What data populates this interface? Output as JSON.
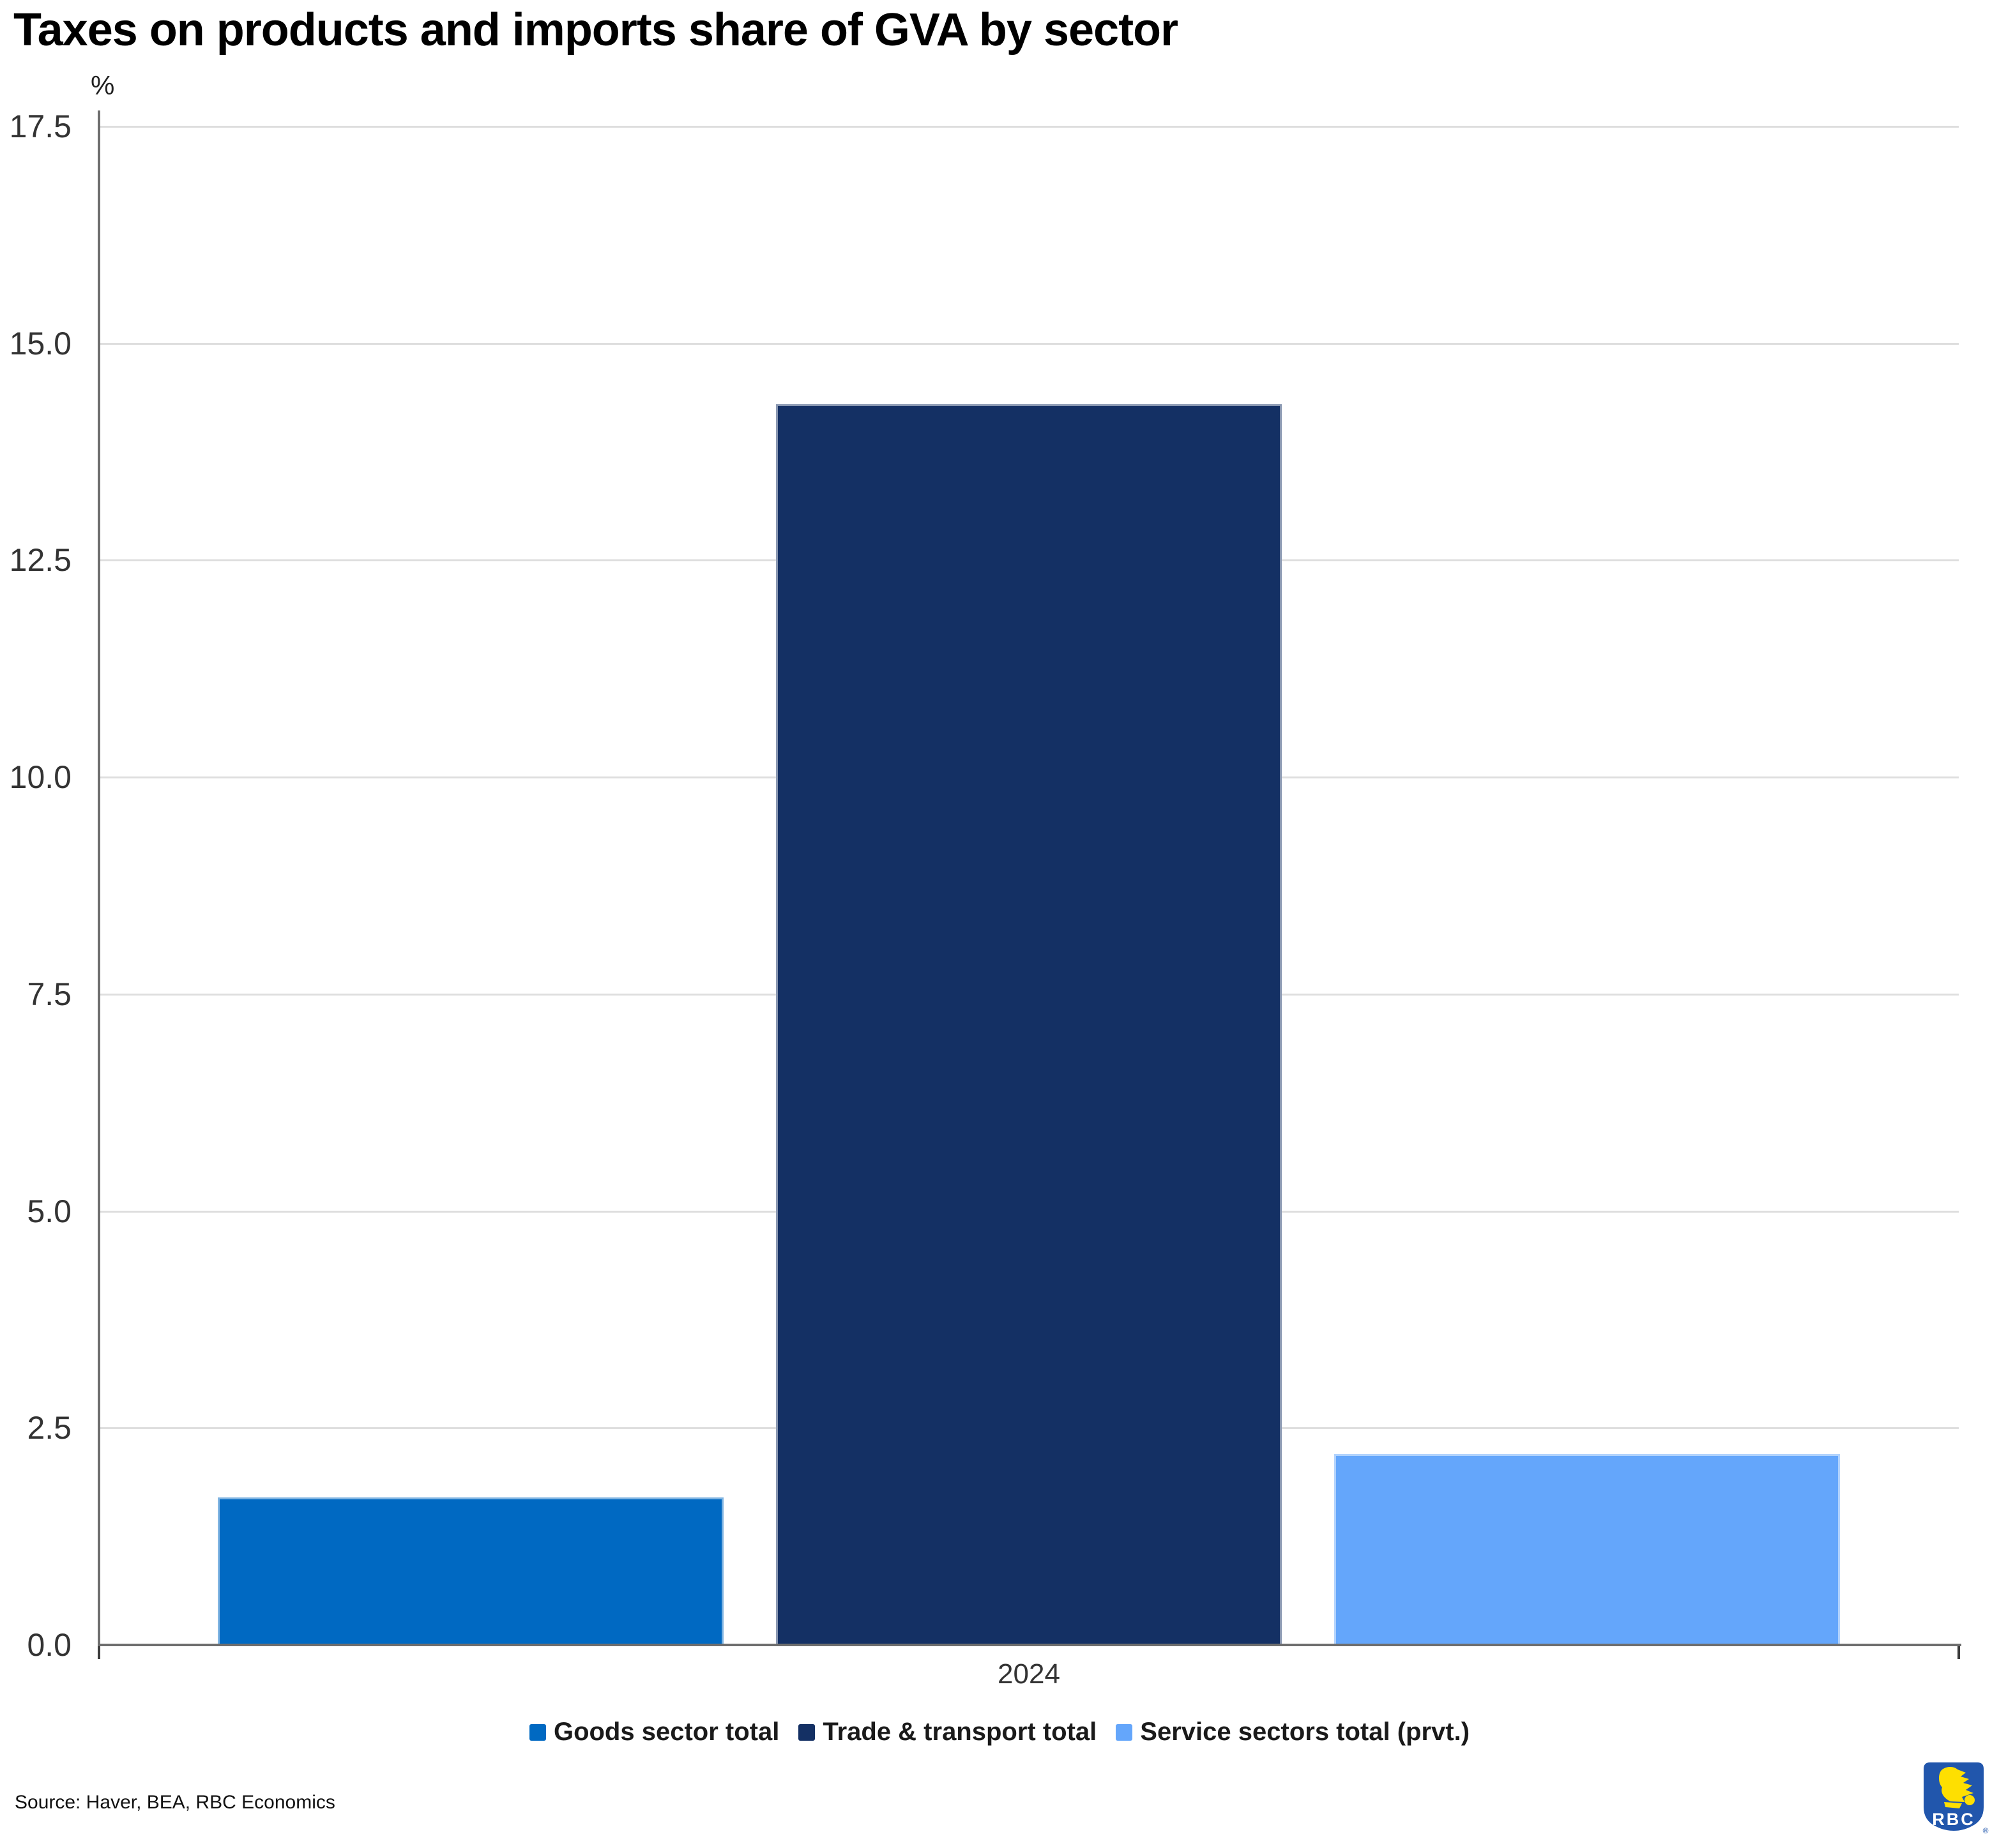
{
  "title": "Taxes on products and imports share of GVA by sector",
  "source_note": "Source: Haver, BEA, RBC Economics",
  "x_axis": {
    "category_label": "2024"
  },
  "y_axis": {
    "unit_label": "%",
    "tick_decimals": 1
  },
  "logo": {
    "text": "RBC",
    "registered_mark": "®"
  },
  "colors": {
    "grid": "#dedede",
    "axis": "#6e6e6e",
    "end_tick": "#3c3c3c",
    "tick_label": "#333333",
    "title": "#000000",
    "logo_blue": "#2156ac",
    "logo_yellow": "#fedf01"
  },
  "chart_data": {
    "type": "bar",
    "title": "Taxes on products and imports share of GVA by sector",
    "categories": [
      "2024"
    ],
    "series": [
      {
        "name": "Goods sector total",
        "values": [
          1.7
        ],
        "color": "#0069c2"
      },
      {
        "name": "Trade & transport total",
        "values": [
          14.3
        ],
        "color": "#143064"
      },
      {
        "name": "Service sectors total (prvt.)",
        "values": [
          2.2
        ],
        "color": "#64a6fb"
      }
    ],
    "xlabel": "",
    "ylabel": "%",
    "ylim": [
      0,
      17.5
    ],
    "yticks": [
      0,
      2.5,
      5,
      7.5,
      10,
      12.5,
      15,
      17.5
    ],
    "grid": true,
    "legend_position": "bottom"
  }
}
